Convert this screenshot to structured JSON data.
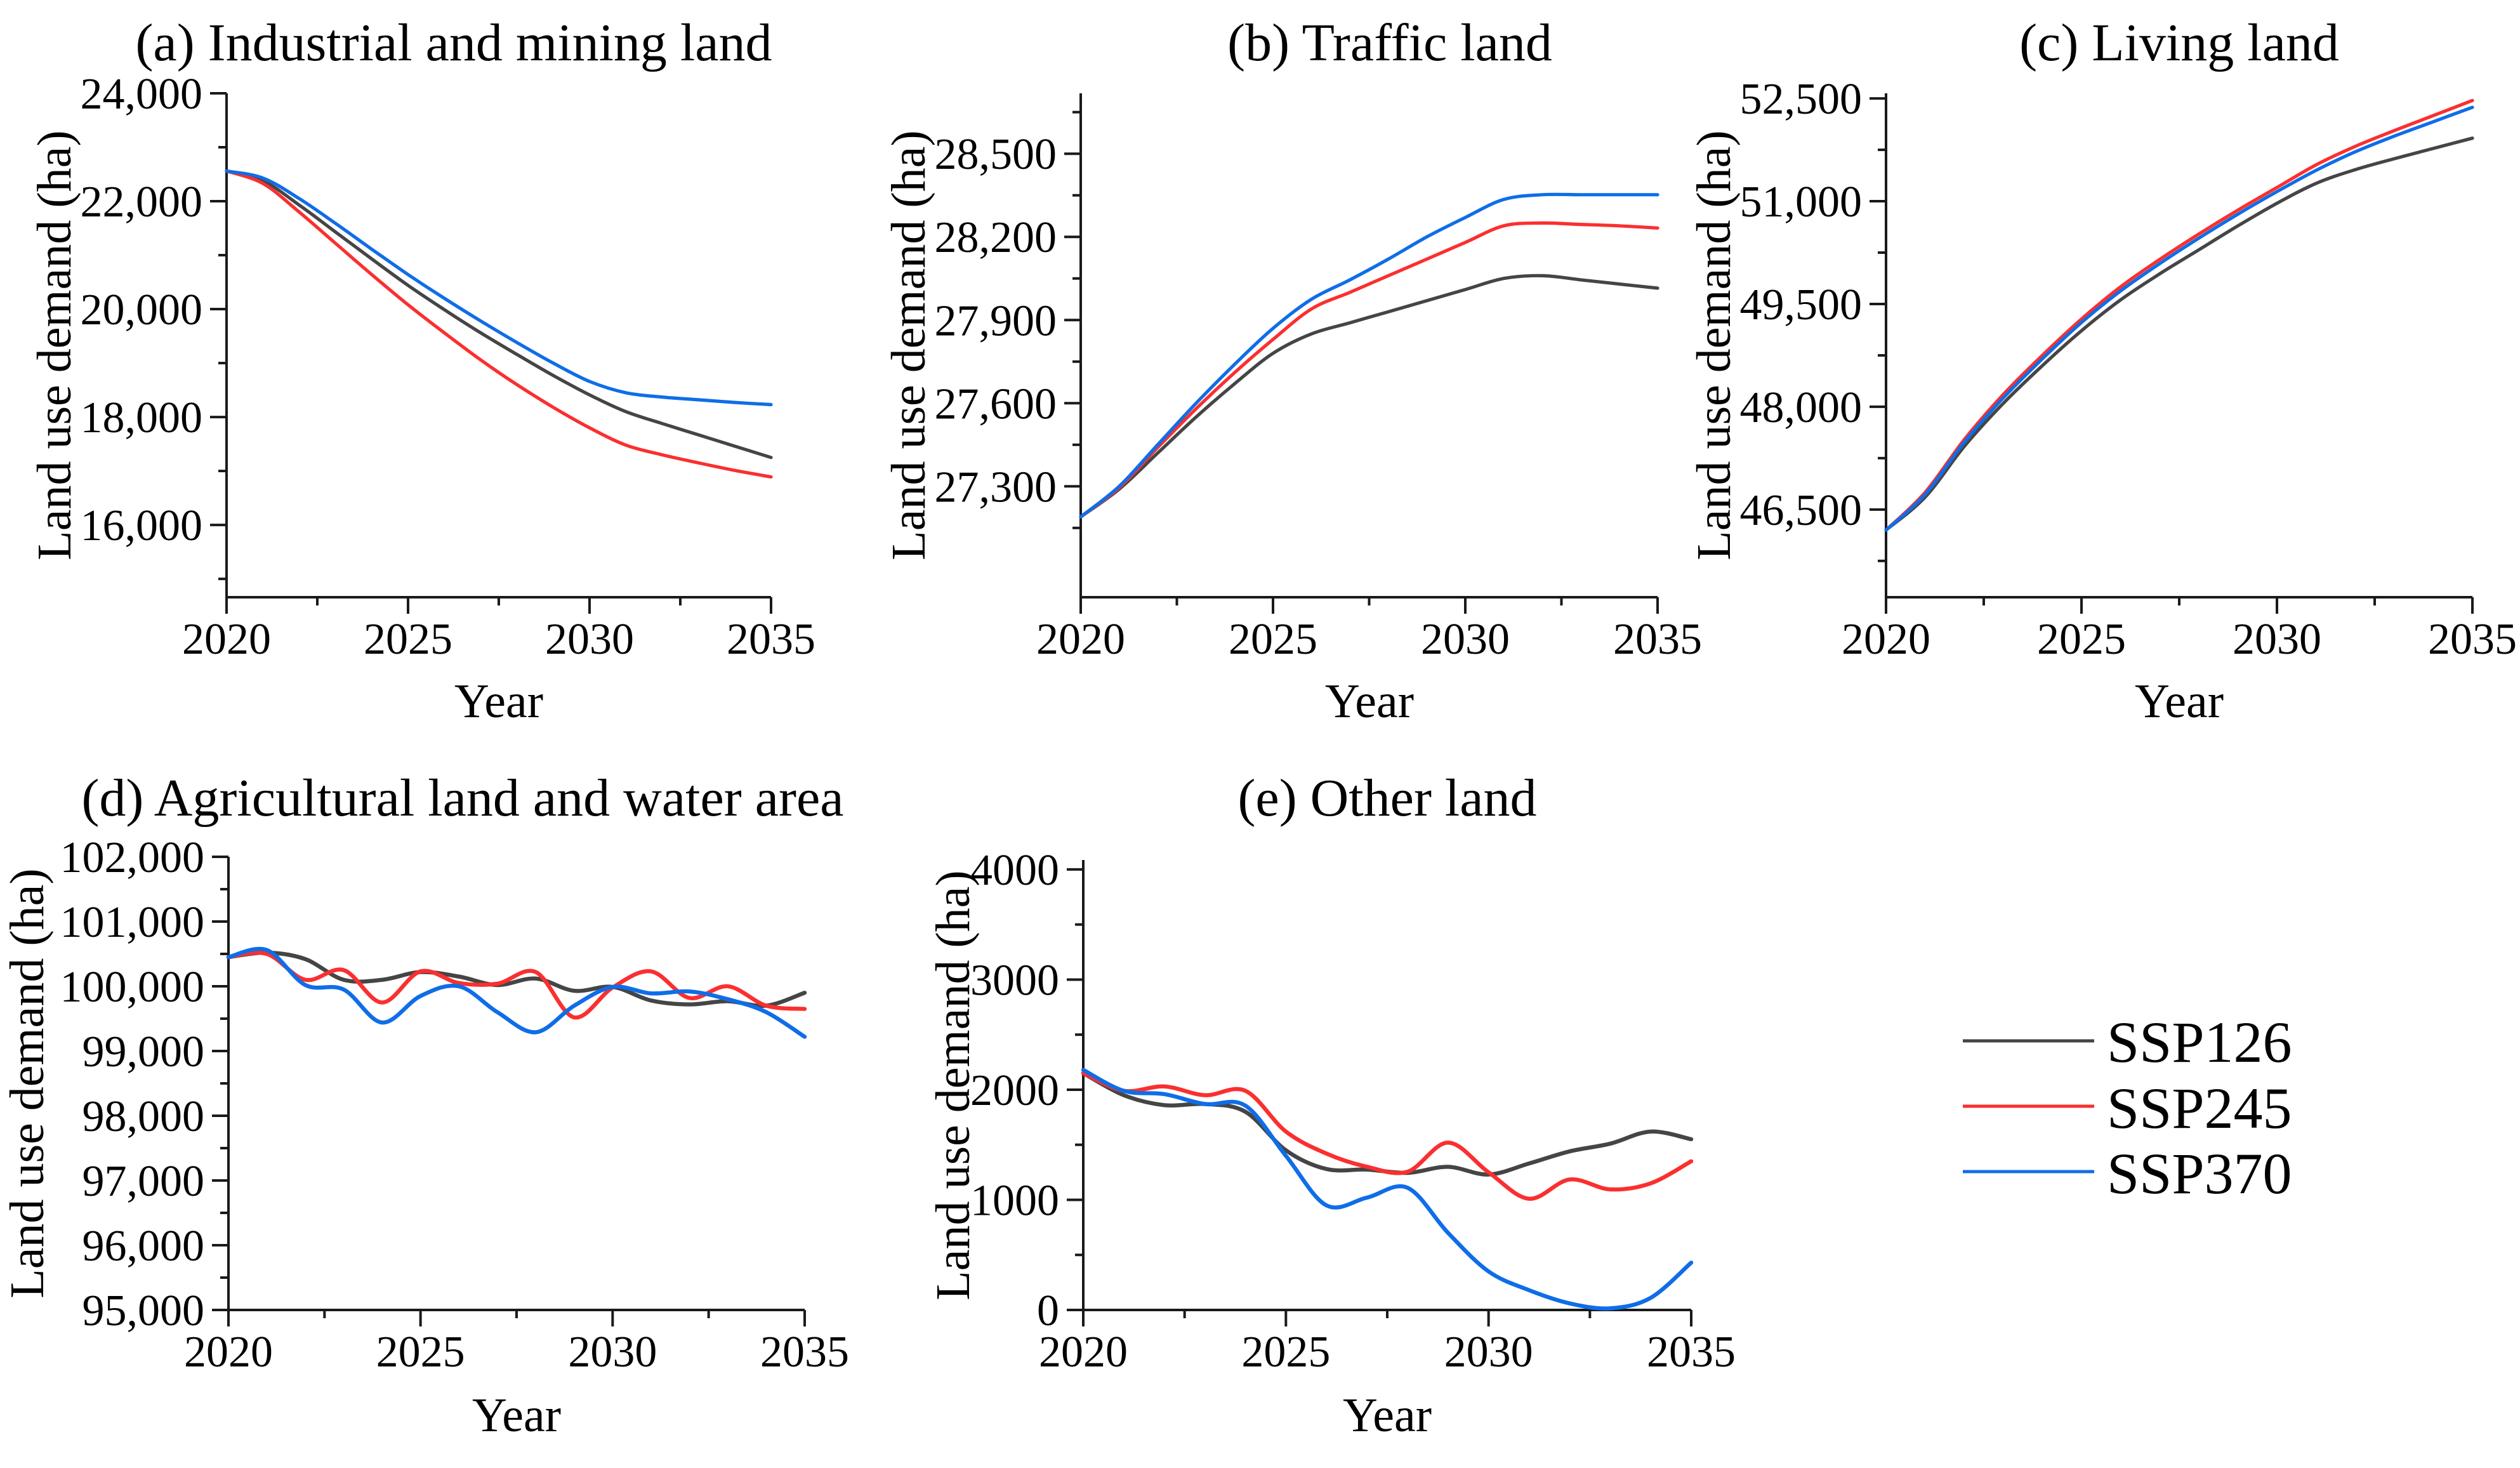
{
  "figure": {
    "background": "#ffffff"
  },
  "colors": {
    "ssp126": "#454545",
    "ssp245": "#fb2f2f",
    "ssp370": "#0f6de8",
    "axis": "#1a1a1a",
    "text": "#000000"
  },
  "legend": {
    "items": [
      {
        "name": "SSP126",
        "color": "ssp126"
      },
      {
        "name": "SSP245",
        "color": "ssp245"
      },
      {
        "name": "SSP370",
        "color": "ssp370"
      }
    ]
  },
  "chart_data": [
    {
      "id": "a",
      "type": "line",
      "title": "(a) Industrial and mining land",
      "xlabel": "Year",
      "ylabel": "Land use demand (ha)",
      "x": [
        2020,
        2021,
        2022,
        2023,
        2024,
        2025,
        2026,
        2027,
        2028,
        2029,
        2030,
        2031,
        2032,
        2033,
        2034,
        2035
      ],
      "xticks": {
        "major": [
          2020,
          2025,
          2030,
          2035
        ],
        "minor": [
          2022.5,
          2027.5,
          2032.5
        ]
      },
      "yticks": {
        "major": [
          {
            "value": 16000,
            "label": "16,000"
          },
          {
            "value": 18000,
            "label": "18,000"
          },
          {
            "value": 20000,
            "label": "20,000"
          },
          {
            "value": 22000,
            "label": "22,000"
          },
          {
            "value": 24000,
            "label": "24,000"
          }
        ],
        "minor": [
          15000,
          17000,
          19000,
          21000,
          23000
        ]
      },
      "ylim": [
        14660,
        24000
      ],
      "series": [
        {
          "name": "SSP126",
          "color": "ssp126",
          "values": [
            22560,
            22380,
            21930,
            21430,
            20930,
            20440,
            19990,
            19560,
            19160,
            18770,
            18410,
            18100,
            17880,
            17670,
            17460,
            17250
          ]
        },
        {
          "name": "SSP245",
          "color": "ssp245",
          "values": [
            22560,
            22330,
            21800,
            21220,
            20640,
            20080,
            19560,
            19060,
            18600,
            18180,
            17800,
            17480,
            17300,
            17150,
            17010,
            16890
          ]
        },
        {
          "name": "SSP370",
          "color": "ssp370",
          "values": [
            22560,
            22430,
            22050,
            21590,
            21110,
            20640,
            20200,
            19780,
            19380,
            19000,
            18660,
            18450,
            18370,
            18320,
            18270,
            18230
          ]
        }
      ]
    },
    {
      "id": "b",
      "type": "line",
      "title": "(b) Traffic land",
      "xlabel": "Year",
      "ylabel": "Land use demand (ha)",
      "x": [
        2020,
        2021,
        2022,
        2023,
        2024,
        2025,
        2026,
        2027,
        2028,
        2029,
        2030,
        2031,
        2032,
        2033,
        2034,
        2035
      ],
      "xticks": {
        "major": [
          2020,
          2025,
          2030,
          2035
        ],
        "minor": [
          2022.5,
          2027.5,
          2032.5
        ]
      },
      "yticks": {
        "major": [
          {
            "value": 27300,
            "label": "27,300"
          },
          {
            "value": 27600,
            "label": "27,600"
          },
          {
            "value": 27900,
            "label": "27,900"
          },
          {
            "value": 28200,
            "label": "28,200"
          },
          {
            "value": 28500,
            "label": "28,500"
          }
        ],
        "minor": [
          27150,
          27450,
          27750,
          28050,
          28350,
          28650
        ]
      },
      "ylim": [
        26900,
        28718
      ],
      "series": [
        {
          "name": "SSP126",
          "color": "ssp126",
          "values": [
            27190,
            27290,
            27420,
            27550,
            27670,
            27780,
            27850,
            27890,
            27930,
            27970,
            28010,
            28050,
            28060,
            28045,
            28030,
            28015
          ]
        },
        {
          "name": "SSP245",
          "color": "ssp245",
          "values": [
            27190,
            27295,
            27440,
            27580,
            27710,
            27830,
            27940,
            28000,
            28060,
            28120,
            28180,
            28240,
            28250,
            28245,
            28240,
            28232
          ]
        },
        {
          "name": "SSP370",
          "color": "ssp370",
          "values": [
            27190,
            27300,
            27450,
            27600,
            27740,
            27870,
            27975,
            28045,
            28120,
            28200,
            28270,
            28335,
            28352,
            28352,
            28352,
            28352
          ]
        }
      ]
    },
    {
      "id": "c",
      "type": "line",
      "title": "(c) Living land",
      "xlabel": "Year",
      "ylabel": "Land use demand (ha)",
      "x": [
        2020,
        2021,
        2022,
        2023,
        2024,
        2025,
        2026,
        2027,
        2028,
        2029,
        2030,
        2031,
        2032,
        2033,
        2034,
        2035
      ],
      "xticks": {
        "major": [
          2020,
          2025,
          2030,
          2035
        ],
        "minor": [
          2022.5,
          2027.5,
          2032.5
        ]
      },
      "yticks": {
        "major": [
          {
            "value": 46500,
            "label": "46,500"
          },
          {
            "value": 48000,
            "label": "48,000"
          },
          {
            "value": 49500,
            "label": "49,500"
          },
          {
            "value": 51000,
            "label": "51,000"
          },
          {
            "value": 52500,
            "label": "52,500"
          }
        ],
        "minor": [
          45750,
          47250,
          48750,
          50250,
          51750
        ]
      },
      "ylim": [
        45220,
        52575
      ],
      "series": [
        {
          "name": "SSP126",
          "color": "ssp126",
          "values": [
            46200,
            46680,
            47420,
            48050,
            48600,
            49110,
            49560,
            49940,
            50290,
            50640,
            50970,
            51260,
            51460,
            51620,
            51770,
            51920
          ]
        },
        {
          "name": "SSP245",
          "color": "ssp245",
          "values": [
            46200,
            46750,
            47520,
            48180,
            48750,
            49280,
            49750,
            50150,
            50520,
            50870,
            51200,
            51530,
            51800,
            52030,
            52250,
            52470
          ]
        },
        {
          "name": "SSP370",
          "color": "ssp370",
          "values": [
            46200,
            46720,
            47480,
            48130,
            48700,
            49230,
            49690,
            50090,
            50460,
            50810,
            51140,
            51450,
            51720,
            51950,
            52160,
            52370
          ]
        }
      ]
    },
    {
      "id": "d",
      "type": "line",
      "title": "(d) Agricultural land and water area",
      "xlabel": "Year",
      "ylabel": "Land use demand (ha)",
      "x": [
        2020,
        2021,
        2022,
        2023,
        2024,
        2025,
        2026,
        2027,
        2028,
        2029,
        2030,
        2031,
        2032,
        2033,
        2034,
        2035
      ],
      "xticks": {
        "major": [
          2020,
          2025,
          2030,
          2035
        ],
        "minor": [
          2022.5,
          2027.5,
          2032.5
        ]
      },
      "yticks": {
        "major": [
          {
            "value": 95000,
            "label": "95,000"
          },
          {
            "value": 96000,
            "label": "96,000"
          },
          {
            "value": 97000,
            "label": "97,000"
          },
          {
            "value": 98000,
            "label": "98,000"
          },
          {
            "value": 99000,
            "label": "99,000"
          },
          {
            "value": 100000,
            "label": "100,000"
          },
          {
            "value": 101000,
            "label": "101,000"
          },
          {
            "value": 102000,
            "label": "102,000"
          }
        ],
        "minor": [
          95500,
          96500,
          97500,
          98500,
          99500,
          100500,
          101500
        ]
      },
      "ylim": [
        95000,
        102000
      ],
      "series": [
        {
          "name": "SSP126",
          "color": "ssp126",
          "values": [
            100450,
            100520,
            100420,
            100100,
            100100,
            100220,
            100150,
            100020,
            100120,
            99930,
            99990,
            99780,
            99720,
            99770,
            99700,
            99900
          ]
        },
        {
          "name": "SSP245",
          "color": "ssp245",
          "values": [
            100450,
            100500,
            100100,
            100250,
            99750,
            100230,
            100050,
            100040,
            100220,
            99520,
            99980,
            100230,
            99820,
            100000,
            99700,
            99650
          ]
        },
        {
          "name": "SSP370",
          "color": "ssp370",
          "values": [
            100450,
            100560,
            100020,
            99950,
            99440,
            99850,
            100000,
            99600,
            99290,
            99700,
            99990,
            99890,
            99920,
            99800,
            99600,
            99220
          ]
        }
      ]
    },
    {
      "id": "e",
      "type": "line",
      "title": "(e) Other land",
      "xlabel": "Year",
      "ylabel": "Land use demand (ha)",
      "x": [
        2020,
        2021,
        2022,
        2023,
        2024,
        2025,
        2026,
        2027,
        2028,
        2029,
        2030,
        2031,
        2032,
        2033,
        2034,
        2035
      ],
      "xticks": {
        "major": [
          2020,
          2025,
          2030,
          2035
        ],
        "minor": [
          2022.5,
          2027.5,
          2032.5
        ]
      },
      "yticks": {
        "major": [
          {
            "value": 0,
            "label": "0"
          },
          {
            "value": 1000,
            "label": "1000"
          },
          {
            "value": 2000,
            "label": "2000"
          },
          {
            "value": 3000,
            "label": "3000"
          },
          {
            "value": 4000,
            "label": "4000"
          }
        ],
        "minor": [
          500,
          1500,
          2500,
          3500
        ]
      },
      "ylim": [
        0,
        4086
      ],
      "series": [
        {
          "name": "SSP126",
          "color": "ssp126",
          "values": [
            2150,
            1950,
            1860,
            1870,
            1800,
            1450,
            1280,
            1275,
            1245,
            1300,
            1230,
            1330,
            1440,
            1510,
            1620,
            1550
          ]
        },
        {
          "name": "SSP245",
          "color": "ssp245",
          "values": [
            2150,
            1990,
            2030,
            1950,
            1990,
            1620,
            1420,
            1300,
            1255,
            1520,
            1250,
            1010,
            1185,
            1095,
            1150,
            1350
          ]
        },
        {
          "name": "SSP370",
          "color": "ssp370",
          "values": [
            2180,
            1990,
            1960,
            1870,
            1855,
            1400,
            950,
            1020,
            1110,
            700,
            350,
            180,
            60,
            15,
            110,
            430
          ]
        }
      ]
    }
  ]
}
